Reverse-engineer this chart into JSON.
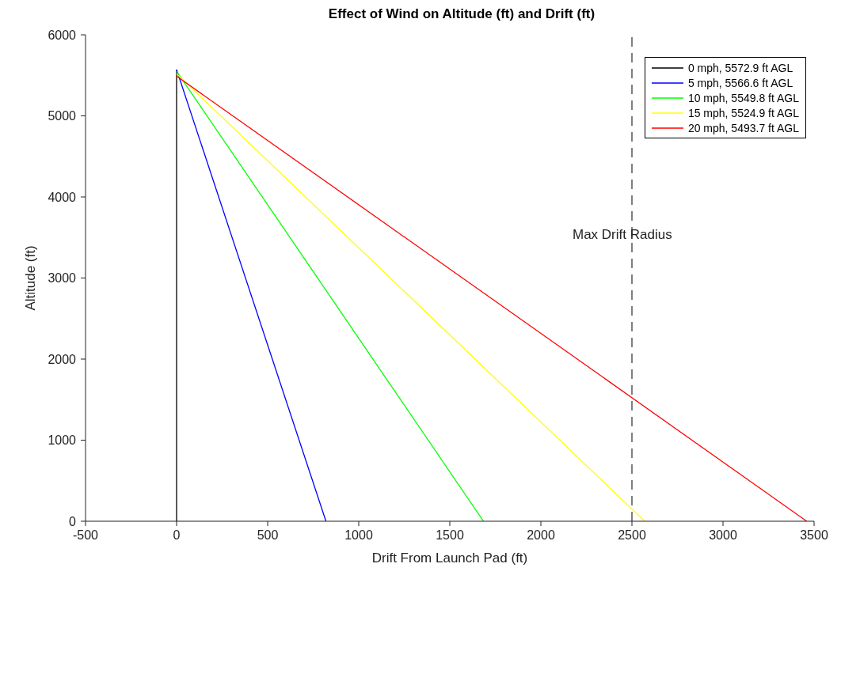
{
  "chart_data": {
    "type": "line",
    "title": "Effect of Wind on Altitude (ft) and Drift (ft)",
    "xlabel": "Drift From Launch Pad (ft)",
    "ylabel": "Altitude (ft)",
    "xlim": [
      -500,
      3500
    ],
    "xticks": [
      -500,
      0,
      500,
      1000,
      1500,
      2000,
      2500,
      3000,
      3500
    ],
    "ylim": [
      0,
      6000
    ],
    "yticks": [
      0,
      1000,
      2000,
      3000,
      4000,
      5000,
      6000
    ],
    "grid": false,
    "legend": "top right",
    "marker": "none",
    "line_style": "solid",
    "series": [
      {
        "name": "0 mph, 5572.9 ft AGL",
        "color": "#000000",
        "x": [
          0,
          0
        ],
        "values": [
          5570,
          0
        ]
      },
      {
        "name": "5 mph, 5566.6 ft AGL",
        "color": "#0000ff",
        "x": [
          0,
          820
        ],
        "values": [
          5570,
          0
        ]
      },
      {
        "name": "10 mph, 5549.8 ft AGL",
        "color": "#00ff00",
        "x": [
          0,
          1685
        ],
        "values": [
          5550,
          0
        ]
      },
      {
        "name": "15 mph, 5524.9 ft AGL",
        "color": "#ffff00",
        "x": [
          0,
          2570
        ],
        "values": [
          5520,
          0
        ]
      },
      {
        "name": "20 mph, 5493.7 ft AGL",
        "color": "#ff0000",
        "x": [
          0,
          3460
        ],
        "values": [
          5490,
          0
        ]
      }
    ],
    "ref_lines": [
      {
        "axis": "x",
        "value": 2500,
        "label": "Max Drift Radius",
        "color": "#000000",
        "line_style": "dashed"
      }
    ]
  }
}
